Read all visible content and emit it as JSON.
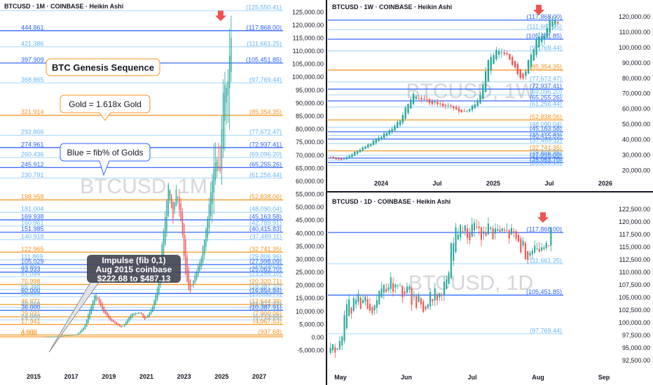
{
  "colors": {
    "up": "#26a69a",
    "down": "#ef5350",
    "blue": "#2962ff",
    "orange": "#f7931a",
    "light_blue": "#64b5f6",
    "divider": "#131722"
  },
  "chart_data": [
    {
      "panel": "monthly",
      "type": "candlestick",
      "title": "BTCUSD · 1M · COINBASE · Heikin Ashi",
      "watermark": "BTCUSD, 1M",
      "x_ticks": [
        "2015",
        "2017",
        "2019",
        "2021",
        "2023",
        "2025",
        "2027"
      ],
      "y_ticks": [
        "125,000.00",
        "120,000.00",
        "115,000.00",
        "110,000.00",
        "105,000.00",
        "100,000.00",
        "95,000.00",
        "90,000.00",
        "85,000.00",
        "80,000.00",
        "75,000.00",
        "70,000.00",
        "65,000.00",
        "60,000.00",
        "55,000.00",
        "50,000.00",
        "45,000.00",
        "40,000.00",
        "35,000.00",
        "30,000.00",
        "25,000.00",
        "20,000.00",
        "15,000.00",
        "10,000.00",
        "5,000.00",
        "0.00",
        "-5,000.00"
      ],
      "ylim": [
        -7000,
        127500
      ],
      "levels": [
        {
          "ratio": "",
          "price": "(125,550.41)",
          "value": 125550,
          "color": "light_blue"
        },
        {
          "ratio": "444.861",
          "price": "(117,868.00)",
          "value": 117868,
          "color": "blue"
        },
        {
          "ratio": "421.386",
          "price": "(111,661.25)",
          "value": 111661,
          "color": "light_blue"
        },
        {
          "ratio": "397.909",
          "price": "(105,451.85)",
          "value": 105452,
          "color": "blue"
        },
        {
          "ratio": "368.865",
          "price": "(97,769.44)",
          "value": 97769,
          "color": "light_blue"
        },
        {
          "ratio": "321.914",
          "price": "(85,354.35)",
          "value": 85354,
          "color": "orange"
        },
        {
          "ratio": "292.866",
          "price": "(77,672.47)",
          "value": 77672,
          "color": "light_blue"
        },
        {
          "ratio": "274.961",
          "price": "(72,937.41)",
          "value": 72937,
          "color": "blue"
        },
        {
          "ratio": "260.436",
          "price": "(69,096.20)",
          "value": 69096,
          "color": "light_blue"
        },
        {
          "ratio": "245.912",
          "price": "(65,255.26)",
          "value": 65255,
          "color": "blue"
        },
        {
          "ratio": "230.791",
          "price": "(61,256.44)",
          "value": 61256,
          "color": "light_blue"
        },
        {
          "ratio": "198.958",
          "price": "(52,838.06)",
          "value": 52838,
          "color": "orange"
        },
        {
          "ratio": "181.004",
          "price": "(48,090.04)",
          "value": 48090,
          "color": "light_blue"
        },
        {
          "ratio": "169.938",
          "price": "(45,163.58)",
          "value": 45163,
          "color": "blue"
        },
        {
          "ratio": "160.961",
          "price": "(42,789.91)",
          "value": 42790,
          "color": "light_blue"
        },
        {
          "ratio": "151.985",
          "price": "(40,415.83)",
          "value": 40416,
          "color": "blue"
        },
        {
          "ratio": "140.918",
          "price": "(37,489.11)",
          "value": 37489,
          "color": "light_blue"
        },
        {
          "ratio": "122.965",
          "price": "(32,741.35)",
          "value": 32741,
          "color": "orange"
        },
        {
          "ratio": "111.869",
          "price": "(29,806.96)",
          "value": 29807,
          "color": "light_blue"
        },
        {
          "ratio": "105.029",
          "price": "(27,998.09)",
          "value": 27998,
          "color": "blue"
        },
        {
          "ratio": "99.481",
          "price": "(26,530.9)",
          "value": 26531,
          "color": "light_blue"
        },
        {
          "ratio": "93.933",
          "price": "(25,063.70)",
          "value": 25064,
          "color": "blue"
        },
        {
          "ratio": "87.094",
          "price": "(23,255.10)",
          "value": 23255,
          "color": "light_blue"
        },
        {
          "ratio": "75.998",
          "price": "(20,320.71)",
          "value": 20321,
          "color": "orange"
        },
        {
          "ratio": "65.348",
          "price": "(18,387.32)",
          "value": 18387,
          "color": "light_blue"
        },
        {
          "ratio": "60.000",
          "price": "(16,854.84)",
          "value": 16855,
          "color": "blue"
        },
        {
          "ratio": "58.000",
          "price": "(15,633.76)",
          "value": 15634,
          "color": "light_blue"
        },
        {
          "ratio": "46.971",
          "price": "(12,644.38)",
          "value": 12644,
          "color": "orange"
        },
        {
          "ratio": "40.000",
          "price": "(11,511.22)",
          "value": 11511,
          "color": "light_blue"
        },
        {
          "ratio": "36.000",
          "price": "(10,387.91)",
          "value": 10388,
          "color": "blue"
        },
        {
          "ratio": "29.031",
          "price": "(7,900.06)",
          "value": 7900,
          "color": "orange"
        },
        {
          "ratio": "24.000",
          "price": "(6,713.66)",
          "value": 6714,
          "color": "light_blue"
        },
        {
          "ratio": "17.941",
          "price": "(4,967.53)",
          "value": 4968,
          "color": "orange"
        },
        {
          "ratio": "4.000",
          "price": "(937.68)",
          "value": 937.68,
          "color": "orange"
        },
        {
          "ratio": "0.000",
          "price": "",
          "value": 222.68,
          "color": "orange"
        }
      ],
      "top_price_label": "125,000.00",
      "arrow_value": 121500,
      "note": "BTC Genesis Sequence"
    },
    {
      "panel": "weekly",
      "type": "candlestick",
      "title": "BTCUSD · 1W · COINBASE · Heikin Ashi",
      "watermark": "BTCUSD, 1W",
      "x_ticks": [
        "2024",
        "Jul",
        "2025",
        "Jul",
        "2026"
      ],
      "y_ticks": [
        "120,000.00",
        "110,000.00",
        "100,000.00",
        "90,000.00",
        "80,000.00",
        "70,000.00",
        "60,000.00",
        "50,000.00",
        "40,000.00",
        "30,000.00",
        "20,000.00"
      ],
      "ylim": [
        17000,
        125500
      ],
      "levels": [
        {
          "price": "(117,868.00)",
          "value": 117868,
          "color": "blue"
        },
        {
          "price": "(111,661.25)",
          "value": 111661,
          "color": "light_blue"
        },
        {
          "price": "(105,451.85)",
          "value": 105452,
          "color": "blue"
        },
        {
          "price": "(97,769.44)",
          "value": 97769,
          "color": "light_blue"
        },
        {
          "price": "(85,354.35)",
          "value": 85354,
          "color": "orange"
        },
        {
          "price": "(77,672.47)",
          "value": 77672,
          "color": "light_blue"
        },
        {
          "price": "(72,937.41)",
          "value": 72937,
          "color": "blue"
        },
        {
          "price": "(69,096.20)",
          "value": 69096,
          "color": "light_blue"
        },
        {
          "price": "(65,255.26)",
          "value": 65255,
          "color": "blue"
        },
        {
          "price": "(61,256.44)",
          "value": 61256,
          "color": "light_blue"
        },
        {
          "price": "(52,838.06)",
          "value": 52838,
          "color": "orange"
        },
        {
          "price": "(48,090.04)",
          "value": 48090,
          "color": "light_blue"
        },
        {
          "price": "(45,163.58)",
          "value": 45163,
          "color": "blue"
        },
        {
          "price": "(42,789.91)",
          "value": 42790,
          "color": "light_blue"
        },
        {
          "price": "(40,415.83)",
          "value": 40416,
          "color": "blue"
        },
        {
          "price": "(37,489.11)",
          "value": 37489,
          "color": "light_blue"
        },
        {
          "price": "(32,741.35)",
          "value": 32741,
          "color": "orange"
        },
        {
          "price": "(29,806.96)",
          "value": 29807,
          "color": "light_blue"
        },
        {
          "price": "(27,998.09)",
          "value": 27998,
          "color": "blue"
        },
        {
          "price": "(26,530.9)",
          "value": 26531,
          "color": "light_blue"
        },
        {
          "price": "(25,063.70)",
          "value": 25064,
          "color": "blue"
        },
        {
          "price": "(23,255.10)",
          "value": 23255,
          "color": "light_blue"
        }
      ],
      "arrow_value": 121000
    },
    {
      "panel": "daily",
      "type": "candlestick",
      "title": "BTCUSD · 1D · COINBASE · Heikin Ashi",
      "watermark": "BTCUSD, 1D",
      "x_ticks": [
        "May",
        "Jun",
        "Jul",
        "Aug",
        "Sep"
      ],
      "y_ticks": [
        "122,500.00",
        "120,000.00",
        "117,500.00",
        "115,000.00",
        "112,500.00",
        "110,000.00",
        "107,500.00",
        "105,000.00",
        "102,500.00",
        "100,000.00",
        "97,500.00",
        "95,000.00",
        "92,500.00"
      ],
      "ylim": [
        91500,
        124000
      ],
      "levels": [
        {
          "price": "(117,868.00)",
          "value": 117868,
          "color": "blue"
        },
        {
          "price": "(111,661.25)",
          "value": 111661,
          "color": "light_blue"
        },
        {
          "price": "(105,451.85)",
          "value": 105452,
          "color": "blue"
        },
        {
          "price": "(97,769.44)",
          "value": 97769,
          "color": "light_blue"
        }
      ],
      "arrow_value": 119800
    }
  ],
  "annotations": {
    "genesis": "BTC Genesis Sequence",
    "gold": "Gold = 1.618x Gold",
    "blue": "Blue = fib% of Golds",
    "impulse_line1": "Impulse (fib 0,1)",
    "impulse_line2": "Aug 2015 coinbase",
    "impulse_line3": "$222.68 to $487.13"
  }
}
